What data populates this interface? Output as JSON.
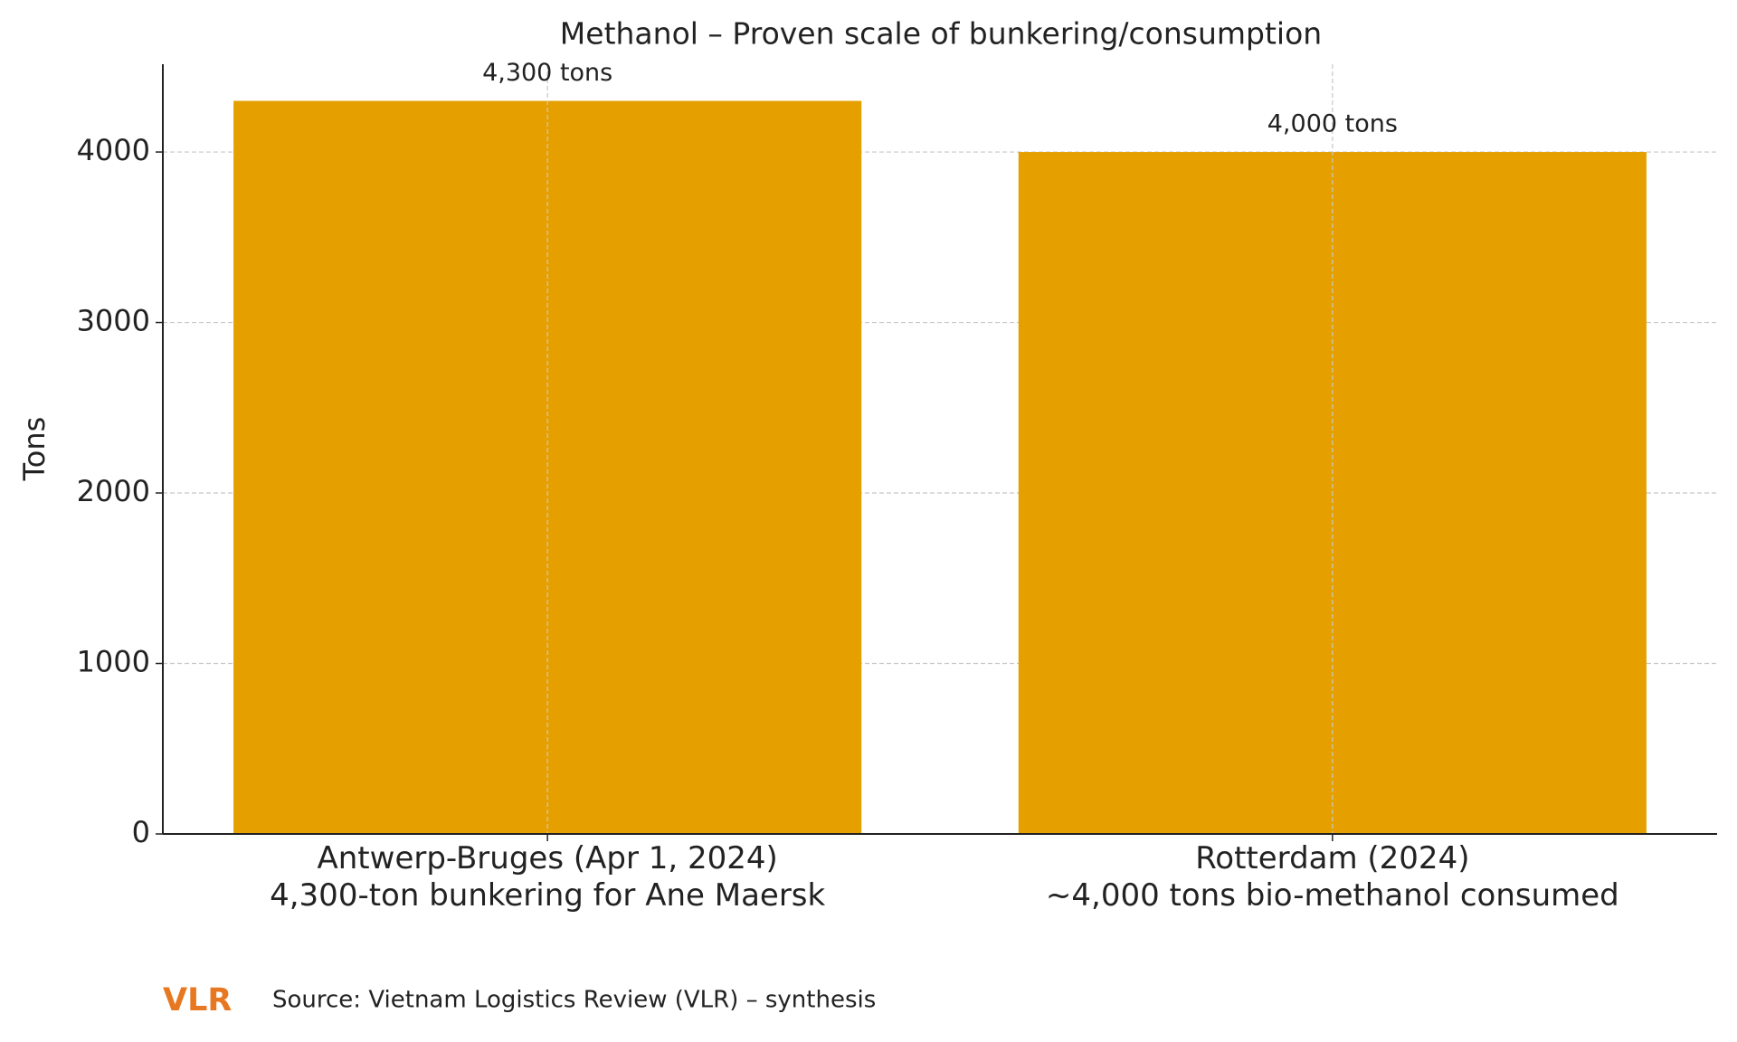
{
  "chart_data": {
    "type": "bar",
    "title": "Methanol – Proven scale of bunkering/consumption",
    "y_label": "Tons",
    "categories": [
      "Antwerp-Bruges (Apr 1, 2024)\n4,300-ton bunkering for Ane Maersk",
      "Rotterdam (2024)\n~4,000 tons bio-methanol consumed"
    ],
    "values": [
      4300,
      4000
    ],
    "value_labels": [
      "4,300 tons",
      "4,000 tons"
    ],
    "color": "#e5a000",
    "ylim": [
      0,
      4515
    ],
    "yticks": [
      0,
      1000,
      2000,
      3000,
      4000
    ],
    "grid": true,
    "logo": "VLR",
    "source": "Source: Vietnam Logistics Review (VLR) – synthesis"
  }
}
